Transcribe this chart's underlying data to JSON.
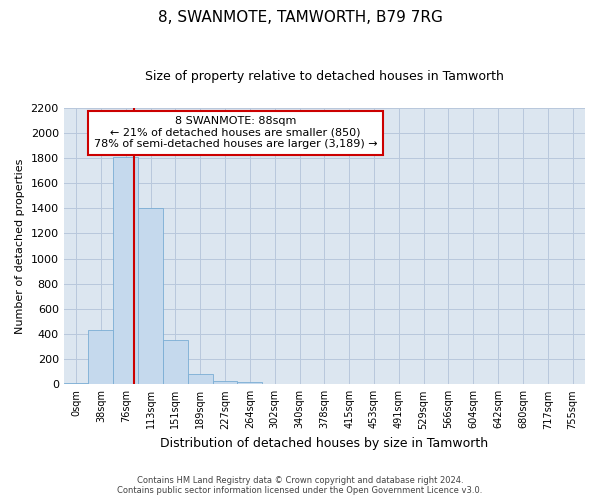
{
  "title": "8, SWANMOTE, TAMWORTH, B79 7RG",
  "subtitle": "Size of property relative to detached houses in Tamworth",
  "xlabel": "Distribution of detached houses by size in Tamworth",
  "ylabel": "Number of detached properties",
  "footer_line1": "Contains HM Land Registry data © Crown copyright and database right 2024.",
  "footer_line2": "Contains public sector information licensed under the Open Government Licence v3.0.",
  "bar_labels": [
    "0sqm",
    "38sqm",
    "76sqm",
    "113sqm",
    "151sqm",
    "189sqm",
    "227sqm",
    "264sqm",
    "302sqm",
    "340sqm",
    "378sqm",
    "415sqm",
    "453sqm",
    "491sqm",
    "529sqm",
    "566sqm",
    "604sqm",
    "642sqm",
    "680sqm",
    "717sqm",
    "755sqm"
  ],
  "bar_values": [
    10,
    430,
    1810,
    1400,
    350,
    80,
    30,
    15,
    5,
    3,
    1,
    0,
    0,
    0,
    0,
    0,
    0,
    0,
    0,
    0,
    0
  ],
  "bar_color": "#c5d9ed",
  "bar_edge_color": "#7aadd4",
  "grid_color": "#b8c8dc",
  "background_color": "#dce6f0",
  "property_label": "8 SWANMOTE: 88sqm",
  "annotation_line1": "← 21% of detached houses are smaller (850)",
  "annotation_line2": "78% of semi-detached houses are larger (3,189) →",
  "red_line_color": "#cc0000",
  "annotation_box_color": "#cc0000",
  "ylim": [
    0,
    2200
  ],
  "ytick_values": [
    0,
    200,
    400,
    600,
    800,
    1000,
    1200,
    1400,
    1600,
    1800,
    2000,
    2200
  ]
}
